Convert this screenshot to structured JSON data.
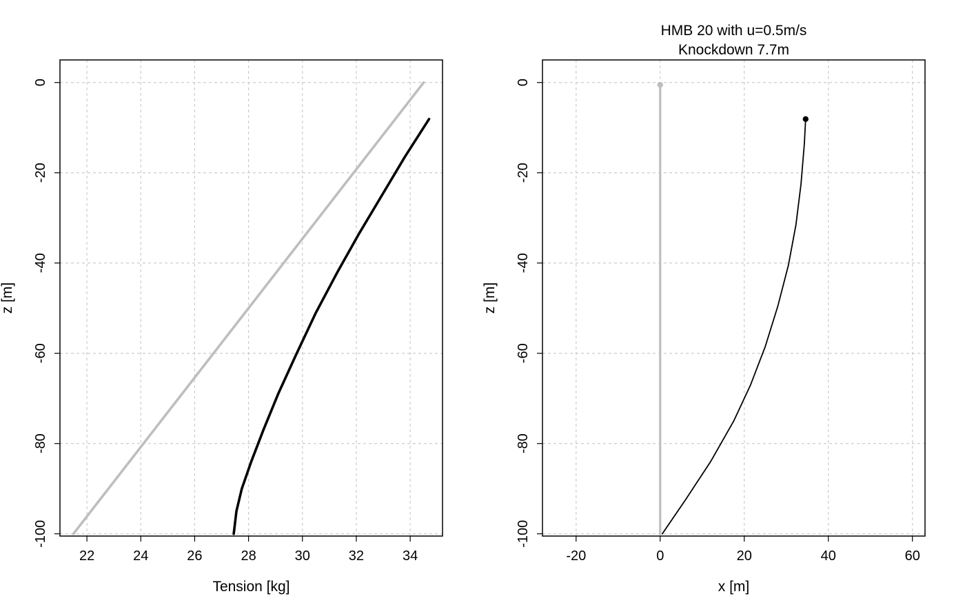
{
  "chart_data": [
    {
      "type": "line",
      "title": "",
      "subtitle": "",
      "xlabel": "Tension [kg]",
      "ylabel": "z [m]",
      "xlim": [
        21.0,
        35.2
      ],
      "ylim": [
        -100.5,
        5.0
      ],
      "xticks": [
        22,
        24,
        26,
        28,
        30,
        32,
        34
      ],
      "xtick_labels": [
        "22",
        "24",
        "26",
        "28",
        "30",
        "32",
        "34"
      ],
      "yticks": [
        0,
        -20,
        -40,
        -60,
        -80,
        -100
      ],
      "ytick_labels": [
        "0",
        "-20",
        "-40",
        "-60",
        "-80",
        "-100"
      ],
      "grid": true,
      "series": [
        {
          "color": "#bebebe",
          "x": [
            21.5,
            34.5
          ],
          "y": [
            -100,
            0
          ]
        },
        {
          "color": "#000000",
          "x": [
            27.45,
            27.55,
            27.75,
            28.1,
            28.55,
            29.1,
            29.75,
            30.5,
            31.3,
            32.1,
            32.95,
            33.8,
            34.7
          ],
          "y": [
            -100,
            -95,
            -90,
            -84,
            -77,
            -69,
            -60.5,
            -51,
            -42,
            -33.5,
            -25,
            -16.5,
            -8.1
          ]
        }
      ]
    },
    {
      "type": "line",
      "title": "HMB 20 with u=0.5m/s",
      "subtitle": "Knockdown 7.7m",
      "xlabel": "x [m]",
      "ylabel": "z [m]",
      "xlim": [
        -28,
        63
      ],
      "ylim": [
        -100.5,
        5.0
      ],
      "xticks": [
        -20,
        0,
        20,
        40,
        60
      ],
      "xtick_labels": [
        "-20",
        "0",
        "20",
        "40",
        "60"
      ],
      "yticks": [
        0,
        -20,
        -40,
        -60,
        -80,
        -100
      ],
      "ytick_labels": [
        "0",
        "-20",
        "-40",
        "-60",
        "-80",
        "-100"
      ],
      "grid": true,
      "series": [
        {
          "color": "#bebebe",
          "x": [
            0,
            0
          ],
          "y": [
            -100,
            -0.5
          ],
          "end_marker": true
        },
        {
          "color": "#000000",
          "x": [
            0.5,
            6,
            12,
            17.5,
            21.5,
            25,
            28,
            30.5,
            32.3,
            33.5,
            34.3,
            34.6
          ],
          "y": [
            -100,
            -92.5,
            -84,
            -75,
            -67,
            -58.5,
            -49.5,
            -40.5,
            -31.5,
            -22.5,
            -13.5,
            -8.1
          ],
          "end_marker": true
        }
      ]
    }
  ]
}
